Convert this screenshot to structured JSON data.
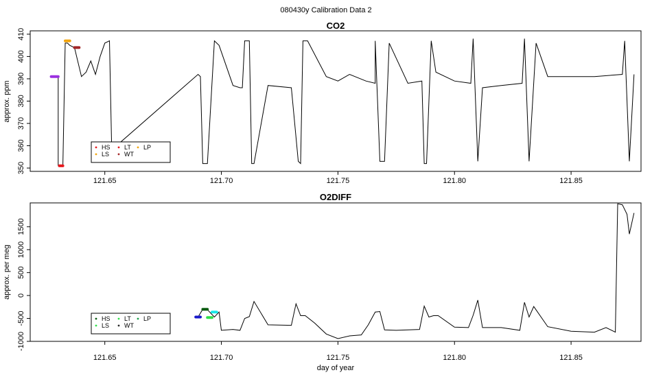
{
  "suptitle": "080430y   Calibration Data 2",
  "xlabel": "day of year",
  "chart_data": [
    {
      "type": "line",
      "title": "CO2",
      "ylabel": "approx. ppm",
      "xlim": [
        121.618,
        121.88
      ],
      "ylim": [
        348.5,
        411.5
      ],
      "xticks": [
        "121.65",
        "121.70",
        "121.75",
        "121.80",
        "121.85"
      ],
      "yticks": [
        "350",
        "360",
        "370",
        "380",
        "390",
        "400",
        "410"
      ],
      "grid": false,
      "legend": {
        "placement": "bottom-left",
        "entries": [
          "HS",
          "LT",
          "LP",
          "LS",
          "WT"
        ],
        "colors": [
          "#e8191e",
          "#e8191e",
          "#f2a40a",
          "#f2a40a",
          "#a32626"
        ]
      },
      "series": [
        {
          "color": "#000000",
          "x": [
            121.627,
            121.63,
            121.63,
            121.632,
            121.633,
            121.634,
            121.635,
            121.637,
            121.64,
            121.642,
            121.644,
            121.646,
            121.648,
            121.65,
            121.652,
            121.653,
            121.654,
            121.655,
            121.69,
            121.691,
            121.692,
            121.694,
            121.697,
            121.699,
            121.705,
            121.708,
            121.709,
            121.71,
            121.712,
            121.713,
            121.714,
            121.72,
            121.73,
            121.733,
            121.734,
            121.735,
            121.737,
            121.745,
            121.75,
            121.755,
            121.762,
            121.766,
            121.766,
            121.768,
            121.77,
            121.772,
            121.78,
            121.786,
            121.787,
            121.788,
            121.79,
            121.792,
            121.8,
            121.807,
            121.808,
            121.81,
            121.812,
            121.82,
            121.829,
            121.83,
            121.832,
            121.835,
            121.84,
            121.86,
            121.872,
            121.873,
            121.875,
            121.877
          ],
          "y": [
            391,
            391,
            351,
            351,
            406,
            406,
            405,
            404,
            391,
            393,
            398,
            392,
            400,
            406,
            407,
            356,
            358,
            360,
            392,
            391,
            352,
            352,
            407,
            405,
            387,
            386,
            386,
            407,
            407,
            352,
            352,
            387,
            386,
            353,
            352,
            407,
            407,
            391,
            389,
            392,
            389,
            388,
            407,
            353,
            353,
            406,
            388,
            389,
            352,
            352,
            407,
            393,
            389,
            388,
            408,
            353,
            386,
            387,
            388,
            408,
            353,
            406,
            391,
            391,
            392,
            407,
            353,
            392
          ]
        },
        {
          "name": "HS",
          "color": "#e8191e",
          "x": [
            121.6305,
            121.632
          ],
          "y": [
            351,
            351
          ]
        },
        {
          "name": "LS",
          "color": "#f2a40a",
          "x": [
            121.633,
            121.635
          ],
          "y": [
            407,
            407
          ]
        },
        {
          "name": "WT",
          "color": "#a32626",
          "x": [
            121.637,
            121.639
          ],
          "y": [
            404,
            404
          ]
        },
        {
          "name": "LP",
          "color": "#9b30e0",
          "x": [
            121.627,
            121.63
          ],
          "y": [
            391,
            391
          ]
        }
      ]
    },
    {
      "type": "line",
      "title": "O2DIFF",
      "ylabel": "approx. per meg",
      "xlim": [
        121.618,
        121.88
      ],
      "ylim": [
        -1000,
        2020
      ],
      "xticks": [
        "121.65",
        "121.70",
        "121.75",
        "121.80",
        "121.85"
      ],
      "yticks": [
        "-1000",
        "-500",
        "0",
        "500",
        "1000",
        "1500"
      ],
      "grid": false,
      "legend": {
        "placement": "bottom-left",
        "entries": [
          "HS",
          "LT",
          "LP",
          "LS",
          "WT"
        ],
        "colors": [
          "#0b5c12",
          "#2ee14a",
          "#1aa04a",
          "#2ee14a",
          "#2b2b2b"
        ]
      },
      "series": [
        {
          "color": "#000000",
          "x": [
            121.69,
            121.692,
            121.694,
            121.697,
            121.699,
            121.7,
            121.705,
            121.708,
            121.71,
            121.712,
            121.714,
            121.72,
            121.73,
            121.732,
            121.734,
            121.736,
            121.74,
            121.745,
            121.75,
            121.755,
            121.76,
            121.763,
            121.766,
            121.768,
            121.77,
            121.775,
            121.785,
            121.787,
            121.789,
            121.791,
            121.793,
            121.8,
            121.806,
            121.808,
            121.81,
            121.812,
            121.82,
            121.828,
            121.83,
            121.832,
            121.834,
            121.84,
            121.85,
            121.86,
            121.865,
            121.869,
            121.87,
            121.872,
            121.874,
            121.875,
            121.877
          ],
          "y": [
            -470,
            -300,
            -310,
            -470,
            -360,
            -760,
            -740,
            -760,
            -500,
            -460,
            -130,
            -640,
            -650,
            -180,
            -440,
            -440,
            -600,
            -840,
            -940,
            -880,
            -860,
            -640,
            -360,
            -350,
            -750,
            -760,
            -740,
            -230,
            -470,
            -440,
            -440,
            -690,
            -700,
            -430,
            -100,
            -700,
            -700,
            -760,
            -150,
            -470,
            -240,
            -680,
            -780,
            -800,
            -700,
            -800,
            2000,
            1980,
            1770,
            1340,
            1800
          ]
        },
        {
          "name": "HS",
          "color": "#0b5c12",
          "x": [
            121.692,
            121.694
          ],
          "y": [
            -300,
            -300
          ]
        },
        {
          "name": "LS",
          "color": "#2ee14a",
          "x": [
            121.694,
            121.696
          ],
          "y": [
            -480,
            -480
          ]
        },
        {
          "name": "LT",
          "color": "#1ae8e8",
          "x": [
            121.696,
            121.698
          ],
          "y": [
            -360,
            -360
          ]
        },
        {
          "name": "LP",
          "color": "#1a1acc",
          "x": [
            121.689,
            121.691
          ],
          "y": [
            -470,
            -470
          ]
        }
      ]
    }
  ]
}
